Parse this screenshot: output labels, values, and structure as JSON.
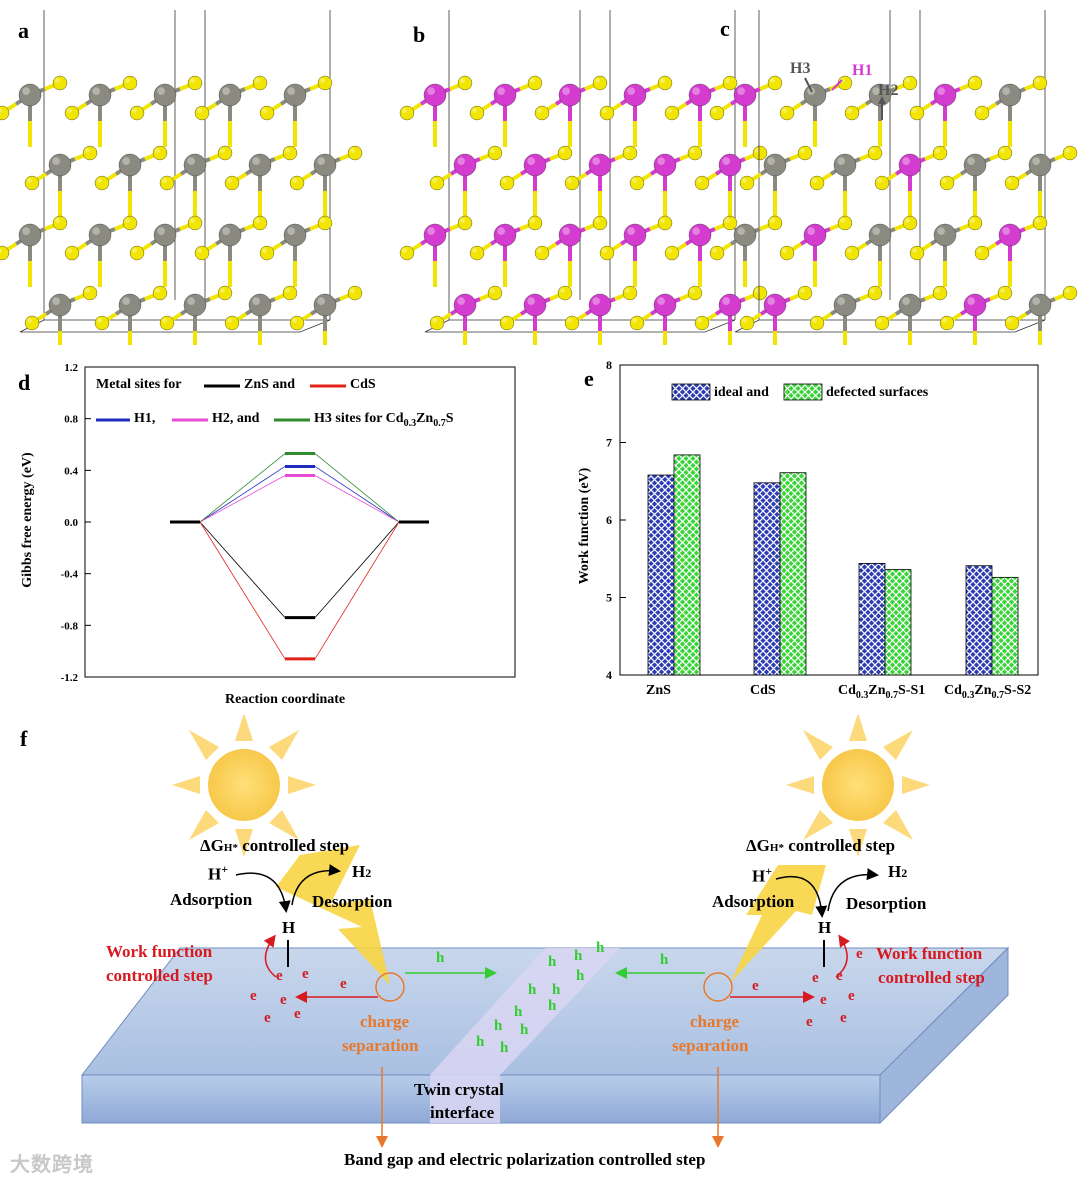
{
  "panels": {
    "a": "a",
    "b": "b",
    "c": "c",
    "d": "d",
    "e": "e",
    "f": "f"
  },
  "structure_c_labels": {
    "h1": "H1",
    "h2": "H2",
    "h3": "H3"
  },
  "colors": {
    "zn_atom": "#8a8a80",
    "s_atom": "#f2e600",
    "cd_atom": "#d43cd0",
    "zns_line": "#000000",
    "cds_line": "#e2231a",
    "h1_line": "#1f2dbf",
    "h2_line": "#e84bd8",
    "h3_line": "#2e8b2e",
    "bar_ideal": "#2b3bb5",
    "bar_defected": "#37d437"
  },
  "chart_data": [
    {
      "type": "line",
      "panel": "d",
      "title": "",
      "xlabel": "Reaction coordinate",
      "ylabel": "Gibbs free energy (eV)",
      "ylim": [
        -1.2,
        1.2
      ],
      "yticks": [
        "1.2",
        "0.8",
        "0.4",
        "0.0",
        "-0.4",
        "-0.8",
        "-1.2"
      ],
      "legend_line1": {
        "prefix": "Metal sites for",
        "a": "ZnS and",
        "b": "CdS"
      },
      "legend_line2": {
        "a": "H1,",
        "b": "H2, and",
        "c_pre": "H3 sites for Cd",
        "c_sub1": "0.3",
        "c_mid": "Zn",
        "c_sub2": "0.7",
        "c_post": "S"
      },
      "x": [
        0,
        1,
        2
      ],
      "series": [
        {
          "name": "ZnS",
          "values": [
            0.0,
            -0.74,
            0.0
          ]
        },
        {
          "name": "CdS",
          "values": [
            0.0,
            -1.06,
            0.0
          ]
        },
        {
          "name": "H1",
          "values": [
            0.0,
            0.43,
            0.0
          ]
        },
        {
          "name": "H2",
          "values": [
            0.0,
            0.36,
            0.0
          ]
        },
        {
          "name": "H3",
          "values": [
            0.0,
            0.53,
            0.0
          ]
        }
      ]
    },
    {
      "type": "bar",
      "panel": "e",
      "title": "",
      "xlabel": "",
      "ylabel": "Work function (eV)",
      "ylim": [
        4,
        8
      ],
      "yticks": [
        "8",
        "7",
        "6",
        "5",
        "4"
      ],
      "categories": [
        "ZnS",
        "CdS",
        "Cd0.3Zn0.7S-S1",
        "Cd0.3Zn0.7S-S2"
      ],
      "category_parts": [
        {
          "main": "ZnS"
        },
        {
          "main": "CdS"
        },
        {
          "a": "Cd",
          "s1": "0.3",
          "b": "Zn",
          "s2": "0.7",
          "c": "S-S1"
        },
        {
          "a": "Cd",
          "s1": "0.3",
          "b": "Zn",
          "s2": "0.7",
          "c": "S-S2"
        }
      ],
      "legend": {
        "ideal": "ideal and",
        "defected": "defected surfaces"
      },
      "series": [
        {
          "name": "ideal",
          "values": [
            6.58,
            6.48,
            5.44,
            5.41
          ]
        },
        {
          "name": "defected",
          "values": [
            6.84,
            6.61,
            5.36,
            5.26
          ]
        }
      ]
    }
  ],
  "schematic": {
    "left": {
      "dg_step": "ΔG",
      "dg_sub": "H*",
      "dg_rest": " controlled step",
      "hplus": "H",
      "hplus_sup": "+",
      "h2": "H",
      "h2_sub": "2",
      "adsorption": "Adsorption",
      "desorption": "Desorption",
      "h": "H",
      "work_function_1": "Work function",
      "work_function_2": "controlled step",
      "charge_1": "charge",
      "charge_2": "separation"
    },
    "right": {
      "dg_step": "ΔG",
      "dg_sub": "H*",
      "dg_rest": " controlled step",
      "hplus": "H",
      "hplus_sup": "+",
      "h2": "H",
      "h2_sub": "2",
      "adsorption": "Adsorption",
      "desorption": "Desorption",
      "h": "H",
      "work_function_1": "Work function",
      "work_function_2": "controlled step",
      "charge_1": "charge",
      "charge_2": "separation"
    },
    "electron": "e",
    "hole": "h",
    "twin_1": "Twin crystal",
    "twin_2": "interface",
    "bottom_caption": "Band gap and electric polarization controlled step"
  },
  "watermark": "大数跨境"
}
